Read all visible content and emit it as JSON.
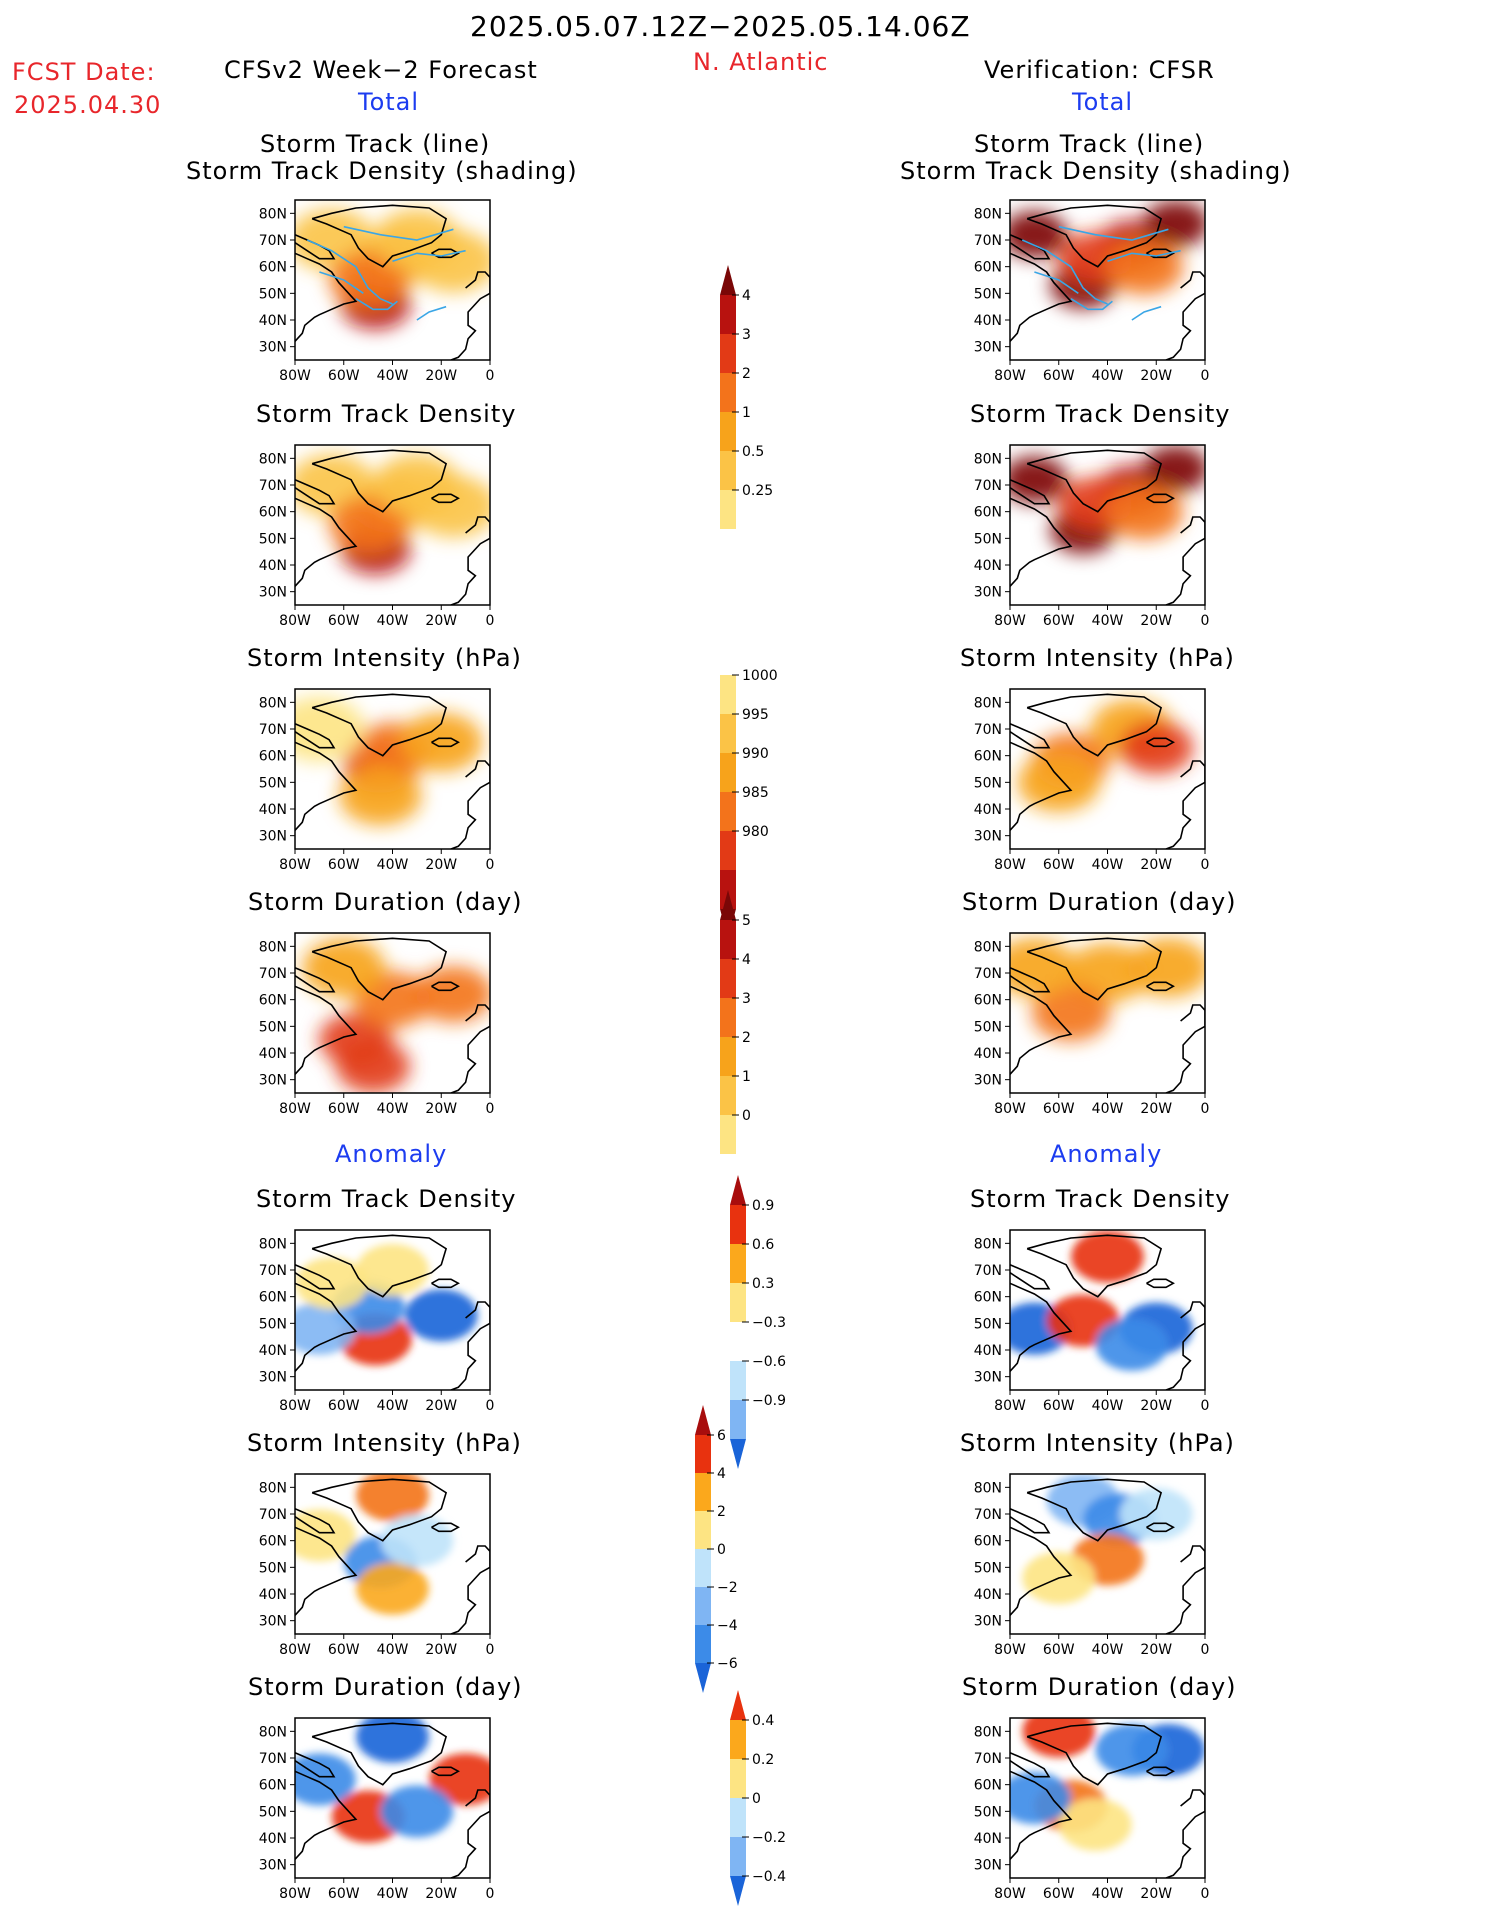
{
  "header": {
    "period": "2025.05.07.12Z−2025.05.14.06Z",
    "region": "N. Atlantic",
    "fcst_label": "FCST Date:",
    "fcst_date": "2025.04.30",
    "left_title": "CFSv2 Week−2 Forecast",
    "right_title": "Verification: CFSR",
    "total_left": "Total",
    "total_right": "Total",
    "anomaly_left": "Anomaly",
    "anomaly_right": "Anomaly"
  },
  "panel_titles": {
    "track_line": "Storm Track (line)",
    "track_shading": "Storm Track Density (shading)",
    "density": "Storm Track Density",
    "intensity": "Storm Intensity (hPa)",
    "duration": "Storm Duration (day)"
  },
  "axes": {
    "lat_ticks": [
      "80N",
      "70N",
      "60N",
      "50N",
      "40N",
      "30N"
    ],
    "lon_ticks": [
      "80W",
      "60W",
      "40W",
      "20W",
      "0"
    ]
  },
  "colors": {
    "total_scale": [
      "#fff7b0",
      "#fde483",
      "#fbc346",
      "#f7a31b",
      "#f3731b",
      "#e23a16",
      "#b8120f",
      "#7a0707"
    ],
    "anom_scale": [
      "#1a64d8",
      "#3c8be8",
      "#7fb5f3",
      "#bfe3fa",
      "#ffffff",
      "#fde483",
      "#fba81c",
      "#f3731b",
      "#e8320f",
      "#a80d0d"
    ],
    "track_line": "#3aa6e6",
    "coast": "#000000"
  },
  "colorbars": {
    "density_total": [
      "0.25",
      "0.5",
      "1",
      "2",
      "3",
      "4"
    ],
    "intensity_total": [
      "1000",
      "995",
      "990",
      "985",
      "980"
    ],
    "duration_total": [
      "0",
      "1",
      "2",
      "3",
      "4",
      "5"
    ],
    "density_anom": [
      "0.9",
      "0.6",
      "0.3",
      "−0.3",
      "−0.6",
      "−0.9"
    ],
    "intensity_anom": [
      "6",
      "4",
      "2",
      "0",
      "−2",
      "−4",
      "−6"
    ],
    "duration_anom": [
      "0.4",
      "0.2",
      "0",
      "−0.2",
      "−0.4"
    ]
  },
  "chart_data": [
    {
      "type": "heatmap",
      "panel": "forecast-total-track",
      "title": "Storm Track (line) Storm Track Density (shading)",
      "scale": "total",
      "blobs": [
        {
          "lon": -47,
          "lat": 46,
          "level": 6
        },
        {
          "lon": -40,
          "lat": 63,
          "level": 3
        },
        {
          "lon": -15,
          "lat": 62,
          "level": 2
        },
        {
          "lon": -65,
          "lat": 70,
          "level": 2
        },
        {
          "lon": -50,
          "lat": 55,
          "level": 4
        },
        {
          "lon": -30,
          "lat": 70,
          "level": 2
        }
      ]
    },
    {
      "type": "heatmap",
      "panel": "forecast-total-density",
      "title": "Storm Track Density",
      "scale": "total",
      "blobs": [
        {
          "lon": -47,
          "lat": 46,
          "level": 6
        },
        {
          "lon": -40,
          "lat": 63,
          "level": 3
        },
        {
          "lon": -15,
          "lat": 62,
          "level": 2
        },
        {
          "lon": -65,
          "lat": 70,
          "level": 2
        },
        {
          "lon": -50,
          "lat": 55,
          "level": 4
        },
        {
          "lon": -30,
          "lat": 70,
          "level": 2
        }
      ]
    },
    {
      "type": "heatmap",
      "panel": "forecast-total-intensity",
      "title": "Storm Intensity (hPa)",
      "scale": "total",
      "blobs": [
        {
          "lon": -45,
          "lat": 56,
          "level": 5
        },
        {
          "lon": -40,
          "lat": 62,
          "level": 4
        },
        {
          "lon": -20,
          "lat": 65,
          "level": 3
        },
        {
          "lon": -70,
          "lat": 70,
          "level": 1
        },
        {
          "lon": -45,
          "lat": 45,
          "level": 3
        }
      ]
    },
    {
      "type": "heatmap",
      "panel": "forecast-total-duration",
      "title": "Storm Duration (day)",
      "scale": "total",
      "blobs": [
        {
          "lon": -55,
          "lat": 45,
          "level": 5
        },
        {
          "lon": -40,
          "lat": 60,
          "level": 4
        },
        {
          "lon": -15,
          "lat": 62,
          "level": 4
        },
        {
          "lon": -60,
          "lat": 72,
          "level": 3
        },
        {
          "lon": -48,
          "lat": 35,
          "level": 5
        }
      ]
    },
    {
      "type": "heatmap",
      "panel": "verif-total-track",
      "title": "Storm Track (line) Storm Track Density (shading)",
      "scale": "total",
      "blobs": [
        {
          "lon": -70,
          "lat": 72,
          "level": 7
        },
        {
          "lon": -50,
          "lat": 53,
          "level": 7
        },
        {
          "lon": -30,
          "lat": 68,
          "level": 6
        },
        {
          "lon": -12,
          "lat": 76,
          "level": 7
        },
        {
          "lon": -45,
          "lat": 63,
          "level": 5
        },
        {
          "lon": -25,
          "lat": 60,
          "level": 4
        }
      ]
    },
    {
      "type": "heatmap",
      "panel": "verif-total-density",
      "title": "Storm Track Density",
      "scale": "total",
      "blobs": [
        {
          "lon": -70,
          "lat": 72,
          "level": 7
        },
        {
          "lon": -50,
          "lat": 53,
          "level": 7
        },
        {
          "lon": -30,
          "lat": 68,
          "level": 6
        },
        {
          "lon": -12,
          "lat": 76,
          "level": 7
        },
        {
          "lon": -45,
          "lat": 63,
          "level": 5
        },
        {
          "lon": -25,
          "lat": 60,
          "level": 4
        }
      ]
    },
    {
      "type": "heatmap",
      "panel": "verif-total-intensity",
      "title": "Storm Intensity (hPa)",
      "scale": "total",
      "blobs": [
        {
          "lon": -30,
          "lat": 70,
          "level": 3
        },
        {
          "lon": -55,
          "lat": 58,
          "level": 4
        },
        {
          "lon": -20,
          "lat": 63,
          "level": 5
        },
        {
          "lon": -60,
          "lat": 50,
          "level": 3
        }
      ]
    },
    {
      "type": "heatmap",
      "panel": "verif-total-duration",
      "title": "Storm Duration (day)",
      "scale": "total",
      "blobs": [
        {
          "lon": -40,
          "lat": 70,
          "level": 3
        },
        {
          "lon": -55,
          "lat": 55,
          "level": 4
        },
        {
          "lon": -15,
          "lat": 72,
          "level": 3
        },
        {
          "lon": -70,
          "lat": 72,
          "level": 3
        }
      ]
    },
    {
      "type": "heatmap",
      "panel": "forecast-anom-density",
      "title": "Storm Track Density",
      "scale": "anom",
      "blobs": [
        {
          "lon": -47,
          "lat": 44,
          "level": 8
        },
        {
          "lon": -20,
          "lat": 53,
          "level": 0
        },
        {
          "lon": -50,
          "lat": 56,
          "level": 1
        },
        {
          "lon": -70,
          "lat": 48,
          "level": 2
        },
        {
          "lon": -40,
          "lat": 70,
          "level": 5
        },
        {
          "lon": -65,
          "lat": 65,
          "level": 5
        }
      ]
    },
    {
      "type": "heatmap",
      "panel": "forecast-anom-intensity",
      "title": "Storm Intensity (hPa)",
      "scale": "anom",
      "blobs": [
        {
          "lon": -40,
          "lat": 77,
          "level": 7
        },
        {
          "lon": -70,
          "lat": 62,
          "level": 5
        },
        {
          "lon": -45,
          "lat": 52,
          "level": 1
        },
        {
          "lon": -40,
          "lat": 42,
          "level": 6
        },
        {
          "lon": -30,
          "lat": 60,
          "level": 3
        }
      ]
    },
    {
      "type": "heatmap",
      "panel": "forecast-anom-duration",
      "title": "Storm Duration (day)",
      "scale": "anom",
      "blobs": [
        {
          "lon": -40,
          "lat": 78,
          "level": 0
        },
        {
          "lon": -10,
          "lat": 62,
          "level": 8
        },
        {
          "lon": -50,
          "lat": 48,
          "level": 8
        },
        {
          "lon": -70,
          "lat": 62,
          "level": 1
        },
        {
          "lon": -30,
          "lat": 50,
          "level": 1
        }
      ]
    },
    {
      "type": "heatmap",
      "panel": "verif-anom-density",
      "title": "Storm Track Density",
      "scale": "anom",
      "blobs": [
        {
          "lon": -40,
          "lat": 75,
          "level": 8
        },
        {
          "lon": -20,
          "lat": 48,
          "level": 0
        },
        {
          "lon": -70,
          "lat": 48,
          "level": 0
        },
        {
          "lon": -50,
          "lat": 51,
          "level": 8
        },
        {
          "lon": -30,
          "lat": 42,
          "level": 1
        }
      ]
    },
    {
      "type": "heatmap",
      "panel": "verif-anom-intensity",
      "title": "Storm Intensity (hPa)",
      "scale": "anom",
      "blobs": [
        {
          "lon": -50,
          "lat": 75,
          "level": 2
        },
        {
          "lon": -35,
          "lat": 68,
          "level": 1
        },
        {
          "lon": -40,
          "lat": 53,
          "level": 7
        },
        {
          "lon": -60,
          "lat": 46,
          "level": 5
        },
        {
          "lon": -20,
          "lat": 70,
          "level": 3
        }
      ]
    },
    {
      "type": "heatmap",
      "panel": "verif-anom-duration",
      "title": "Storm Duration (day)",
      "scale": "anom",
      "blobs": [
        {
          "lon": -60,
          "lat": 80,
          "level": 8
        },
        {
          "lon": -15,
          "lat": 73,
          "level": 0
        },
        {
          "lon": -30,
          "lat": 73,
          "level": 1
        },
        {
          "lon": -55,
          "lat": 52,
          "level": 7
        },
        {
          "lon": -45,
          "lat": 45,
          "level": 5
        },
        {
          "lon": -70,
          "lat": 55,
          "level": 1
        }
      ]
    }
  ]
}
